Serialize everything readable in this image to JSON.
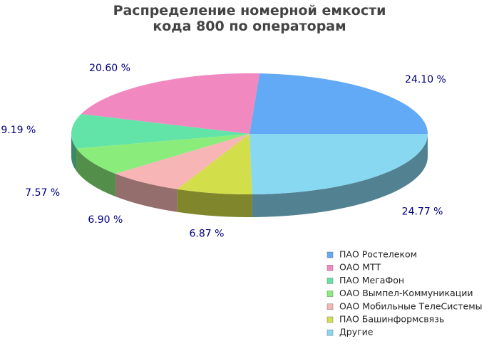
{
  "chart_data": {
    "type": "pie3d",
    "title": "Распределение номерной емкости кода 800 по операторам",
    "categories": [
      "ПАО Ростелеком",
      "ОАО МТТ",
      "ПАО МегаФон",
      "ОАО Вымпел-Коммуникации",
      "ОАО Мобильные ТелеСистемы",
      "ПАО Башинформсвязь",
      "Другие"
    ],
    "values": [
      24.1,
      20.6,
      9.19,
      7.57,
      6.9,
      6.87,
      24.77
    ],
    "value_labels": [
      "24.10 %",
      "20.60 %",
      "9.19 %",
      "7.57 %",
      "6.90 %",
      "6.87 %",
      "24.77 %"
    ],
    "colors": [
      "#62aaf5",
      "#f288c0",
      "#62e3a8",
      "#8aed7b",
      "#f7b5b5",
      "#d3df4a",
      "#88d8f2"
    ]
  }
}
